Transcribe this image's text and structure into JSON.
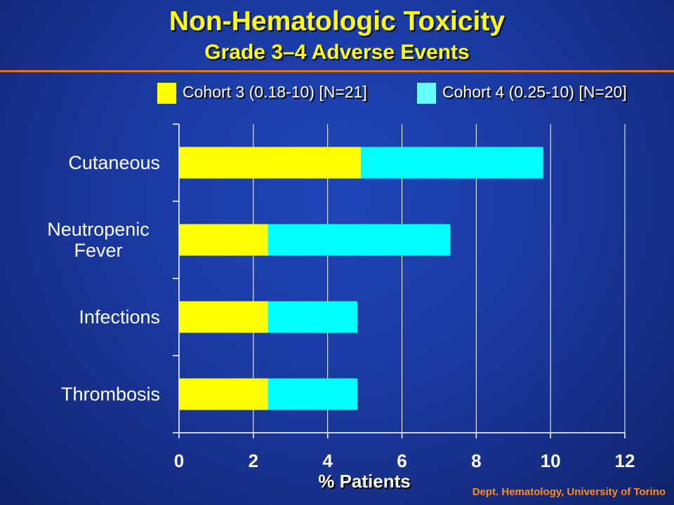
{
  "title": "Non-Hematologic Toxicity",
  "subtitle": "Grade 3–4 Adverse Events",
  "footer": "Dept. Hematology, University of Torino",
  "colors": {
    "title": "#ffff00",
    "subtitle": "#ffff00",
    "footer": "#ff8c1a",
    "rule": "#e07818",
    "axis": "#ffffff"
  },
  "chart_data": {
    "type": "bar",
    "orientation": "horizontal",
    "stacked": true,
    "categories": [
      "Cutaneous",
      "Neutropenic Fever",
      "Infections",
      "Thrombosis"
    ],
    "category_lines": [
      [
        "Cutaneous"
      ],
      [
        "Neutropenic",
        "Fever"
      ],
      [
        "Infections"
      ],
      [
        "Thrombosis"
      ]
    ],
    "series": [
      {
        "name": "Cohort 3 (0.18-10) [N=21]",
        "color": "#ffff00",
        "values": [
          4.9,
          2.4,
          2.4,
          2.4
        ]
      },
      {
        "name": "Cohort 4 (0.25-10) [N=20]",
        "color": "#00ffff",
        "values": [
          4.9,
          4.9,
          2.4,
          2.4
        ]
      }
    ],
    "legend_colors": [
      "#ffff00",
      "#66ffff"
    ],
    "xlabel": "% Patients",
    "ylabel": "",
    "xlim": [
      0,
      12
    ],
    "xticks": [
      0,
      2,
      4,
      6,
      8,
      10,
      12
    ],
    "grid": "vertical",
    "legend_position": "top"
  }
}
